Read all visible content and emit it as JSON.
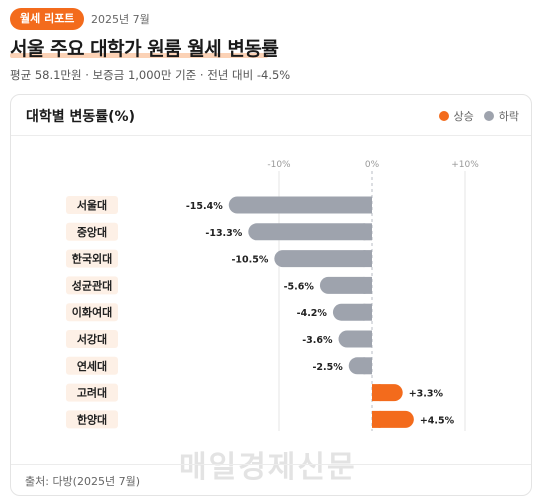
{
  "header": {
    "badge": "월세 리포트",
    "date": "2025년 7월",
    "title": "서울 주요 대학가 원룸 월세 변동률",
    "subtitle": "평균 58.1만원 · 보증금 1,000만 기준 · 전년 대비 -4.5%"
  },
  "card": {
    "title": "대학별 변동률(%)",
    "legend": [
      {
        "label": "상승",
        "color": "#f36b1c"
      },
      {
        "label": "하락",
        "color": "#9ea3ad"
      }
    ],
    "source": "출처: 다방(2025년 7월)",
    "watermark": "매일경제신문"
  },
  "colors": {
    "positive": "#f36b1c",
    "negative": "#9ea3ad",
    "label_bg": "#fdf0e6",
    "zero_line": "#b9bec6",
    "grid": "#e6e6e6"
  },
  "chart_data": {
    "type": "bar",
    "orientation": "horizontal",
    "categories": [
      "서울대",
      "중앙대",
      "한국외대",
      "성균관대",
      "이화여대",
      "서강대",
      "연세대",
      "고려대",
      "한양대"
    ],
    "values": [
      -15.4,
      -13.3,
      -10.5,
      -5.6,
      -4.2,
      -3.6,
      -2.5,
      3.3,
      4.5
    ],
    "value_labels": [
      "-15.4%",
      "-13.3%",
      "-10.5%",
      "-5.6%",
      "-4.2%",
      "-3.6%",
      "-2.5%",
      "+3.3%",
      "+4.5%"
    ],
    "xlim": [
      -20,
      10
    ],
    "ticks": [
      -10,
      0,
      10
    ],
    "tick_labels": [
      "-10%",
      "0%",
      "+10%"
    ],
    "grid": true
  }
}
